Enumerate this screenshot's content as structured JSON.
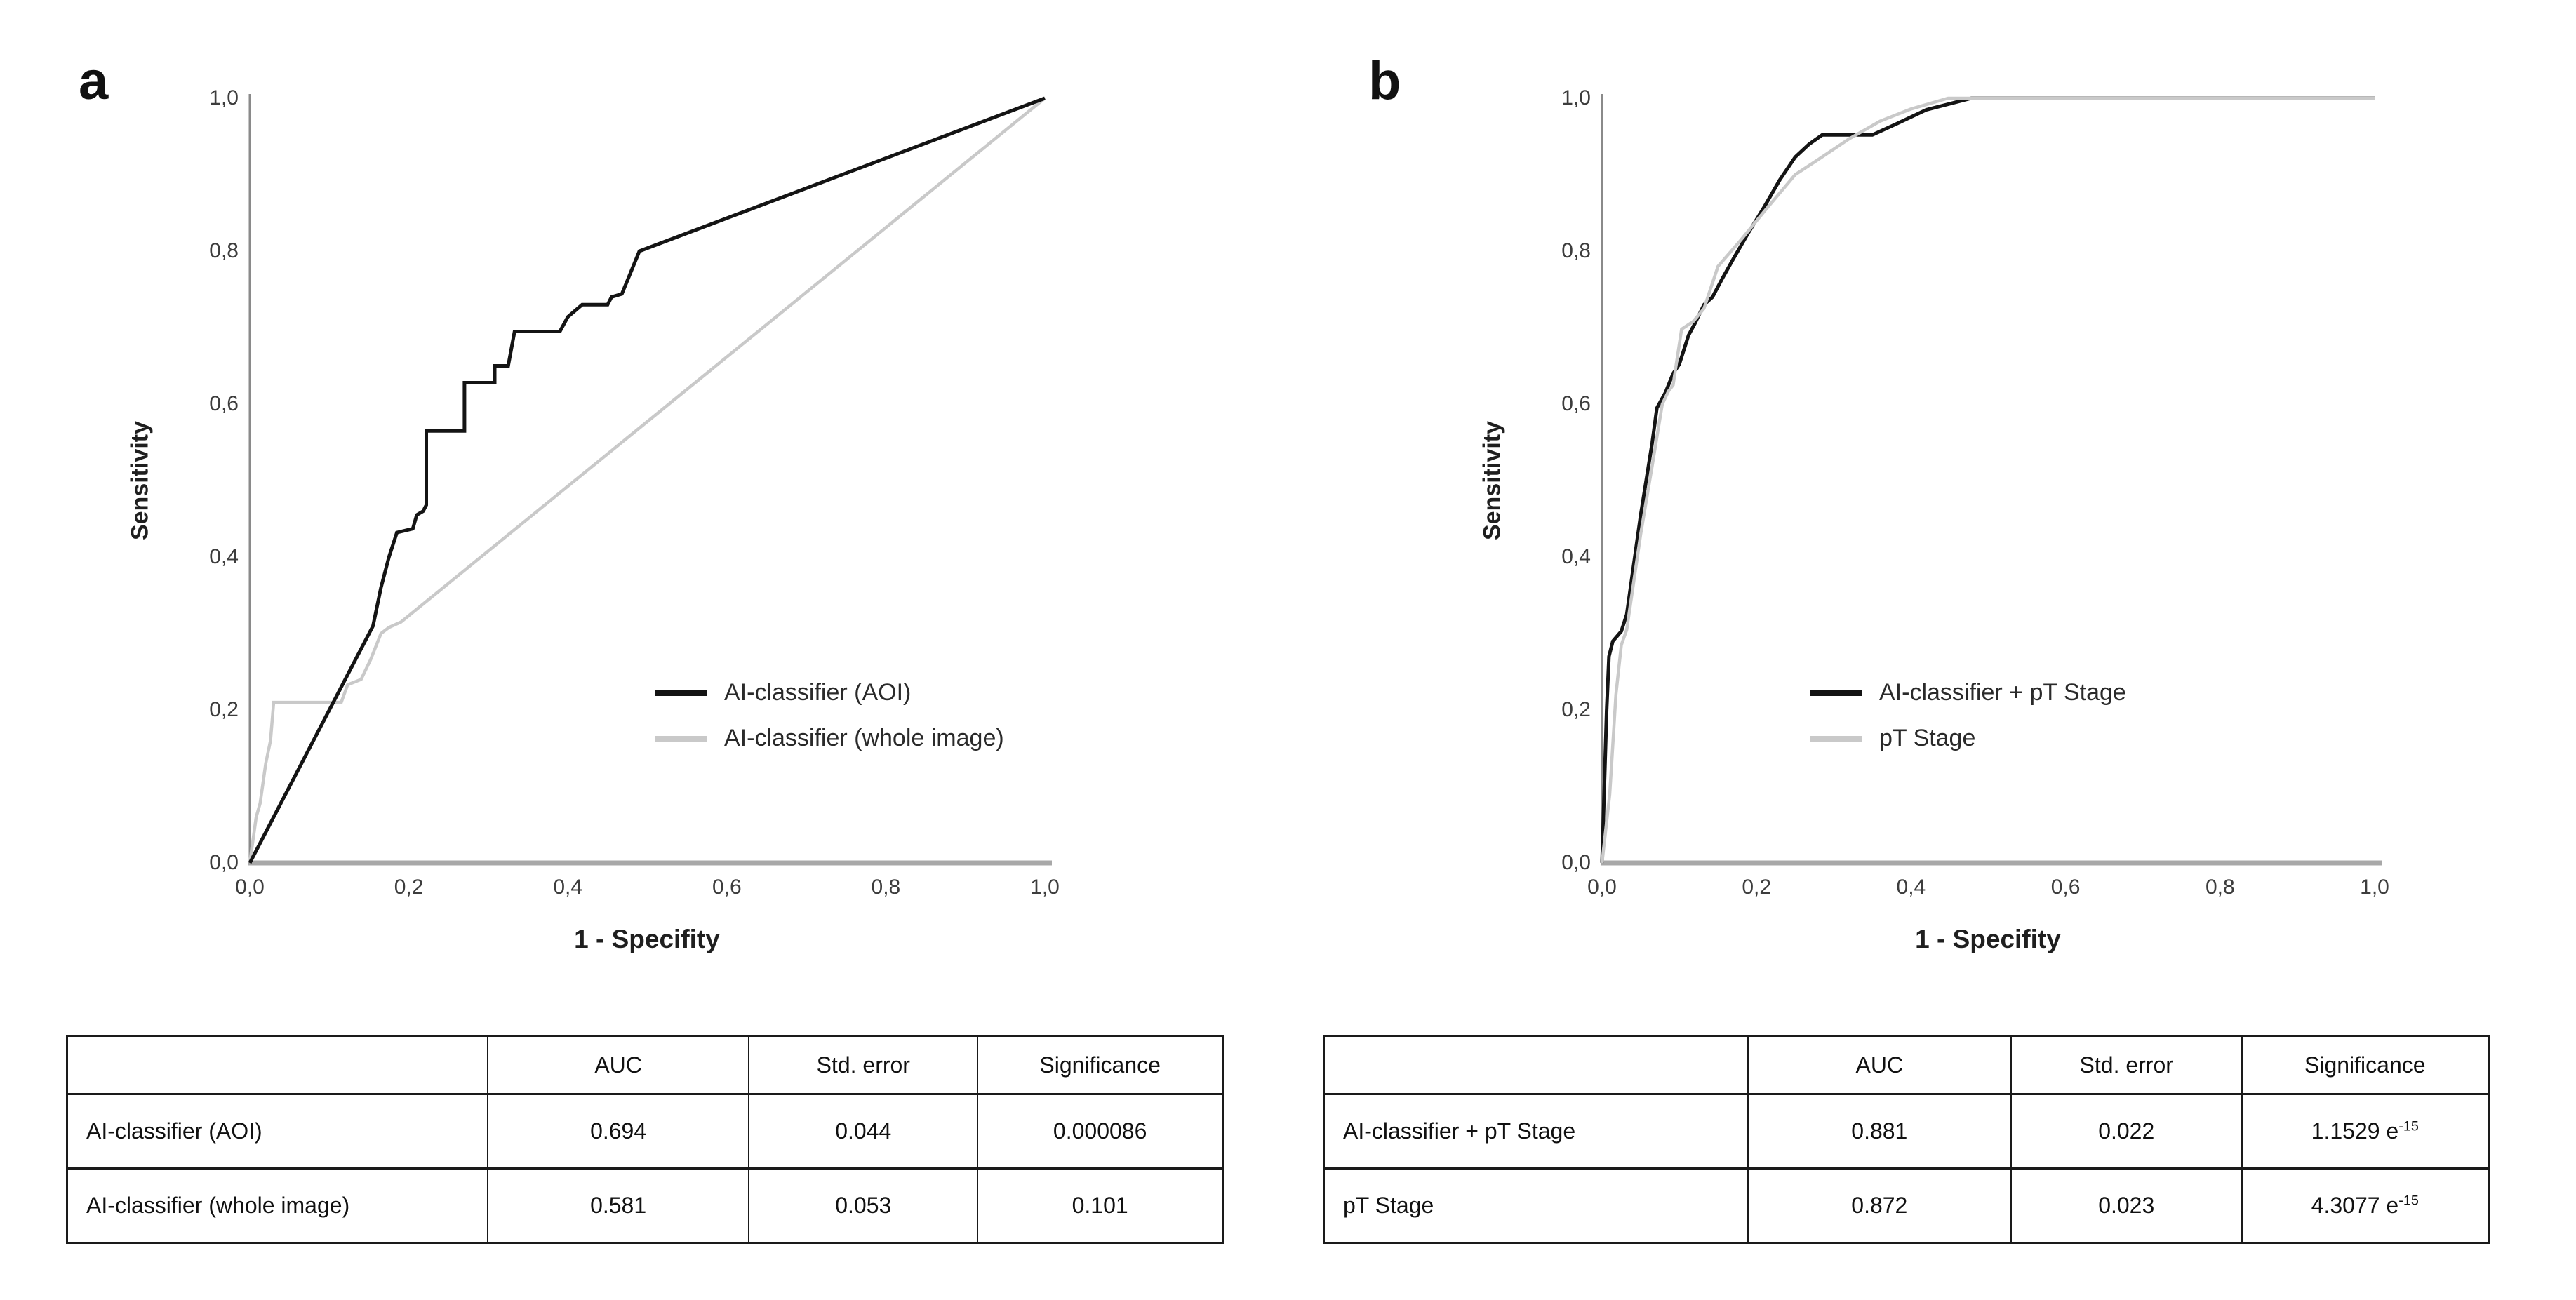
{
  "panels": [
    {
      "letter": "a",
      "y_axis_label": "Sensitivity",
      "x_axis_label": "1 - Specifity",
      "x_ticks": [
        "0,0",
        "0,2",
        "0,4",
        "0,6",
        "0,8",
        "1,0"
      ],
      "y_ticks": [
        "0,0",
        "0,2",
        "0,4",
        "0,6",
        "0,8",
        "1,0"
      ],
      "legend": [
        {
          "label": "AI-classifier (AOI)",
          "color": "#141414"
        },
        {
          "label": "AI-classifier (whole image)",
          "color": "#c9c9c9"
        }
      ],
      "table": {
        "headers": [
          "",
          "AUC",
          "Std. error",
          "Significance"
        ],
        "rows": [
          [
            "AI-classifier (AOI)",
            "0.694",
            "0.044",
            "0.000086"
          ],
          [
            "AI-classifier (whole image)",
            "0.581",
            "0.053",
            "0.101"
          ]
        ]
      }
    },
    {
      "letter": "b",
      "y_axis_label": "Sensitivity",
      "x_axis_label": "1 - Specifity",
      "x_ticks": [
        "0,0",
        "0,2",
        "0,4",
        "0,6",
        "0,8",
        "1,0"
      ],
      "y_ticks": [
        "0,0",
        "0,2",
        "0,4",
        "0,6",
        "0,8",
        "1,0"
      ],
      "legend": [
        {
          "label": "AI-classifier + pT Stage",
          "color": "#141414"
        },
        {
          "label": "pT Stage",
          "color": "#c9c9c9"
        }
      ],
      "table": {
        "headers": [
          "",
          "AUC",
          "Std. error",
          "Significance"
        ],
        "rows": [
          [
            "AI-classifier + pT Stage",
            "0.881",
            "0.022",
            {
              "text": "1.1529 e",
              "sup": "-15"
            }
          ],
          [
            "pT Stage",
            "0.872",
            "0.023",
            {
              "text": "4.3077 e",
              "sup": "-15"
            }
          ]
        ]
      }
    }
  ],
  "chart_data": [
    {
      "type": "line",
      "title": "ROC curves: AI-classifier (AOI) vs AI-classifier (whole image)",
      "xlabel": "1 - Specifity",
      "ylabel": "Sensitivity",
      "xlim": [
        0,
        1
      ],
      "ylim": [
        0,
        1
      ],
      "x_tick_values": [
        0,
        0.2,
        0.4,
        0.6,
        0.8,
        1.0
      ],
      "y_tick_values": [
        0,
        0.2,
        0.4,
        0.6,
        0.8,
        1.0
      ],
      "grid": false,
      "legend_position": "inside-right",
      "series": [
        {
          "name": "AI-classifier (whole image)",
          "auc": 0.581,
          "color": "#c9c9c9",
          "width": 4.5,
          "points": [
            [
              0,
              0
            ],
            [
              0.008,
              0.06
            ],
            [
              0.013,
              0.078
            ],
            [
              0.02,
              0.13
            ],
            [
              0.026,
              0.16
            ],
            [
              0.03,
              0.21
            ],
            [
              0.115,
              0.21
            ],
            [
              0.123,
              0.233
            ],
            [
              0.14,
              0.24
            ],
            [
              0.152,
              0.266
            ],
            [
              0.165,
              0.3
            ],
            [
              0.175,
              0.308
            ],
            [
              0.19,
              0.315
            ],
            [
              1,
              1
            ]
          ]
        },
        {
          "name": "AI-classifier (AOI)",
          "auc": 0.694,
          "color": "#141414",
          "width": 5,
          "points": [
            [
              0,
              0
            ],
            [
              0.155,
              0.31
            ],
            [
              0.165,
              0.36
            ],
            [
              0.175,
              0.4
            ],
            [
              0.185,
              0.432
            ],
            [
              0.205,
              0.437
            ],
            [
              0.21,
              0.455
            ],
            [
              0.218,
              0.46
            ],
            [
              0.222,
              0.468
            ],
            [
              0.222,
              0.565
            ],
            [
              0.27,
              0.565
            ],
            [
              0.27,
              0.628
            ],
            [
              0.308,
              0.628
            ],
            [
              0.308,
              0.65
            ],
            [
              0.325,
              0.65
            ],
            [
              0.333,
              0.695
            ],
            [
              0.39,
              0.695
            ],
            [
              0.4,
              0.714
            ],
            [
              0.418,
              0.73
            ],
            [
              0.45,
              0.73
            ],
            [
              0.455,
              0.74
            ],
            [
              0.468,
              0.744
            ],
            [
              0.49,
              0.8
            ],
            [
              1,
              1
            ]
          ]
        }
      ]
    },
    {
      "type": "line",
      "title": "ROC curves: AI-classifier + pT Stage vs pT Stage",
      "xlabel": "1 - Specifity",
      "ylabel": "Sensitivity",
      "xlim": [
        0,
        1
      ],
      "ylim": [
        0,
        1
      ],
      "x_tick_values": [
        0,
        0.2,
        0.4,
        0.6,
        0.8,
        1.0
      ],
      "y_tick_values": [
        0,
        0.2,
        0.4,
        0.6,
        0.8,
        1.0
      ],
      "grid": false,
      "legend_position": "inside-right",
      "series": [
        {
          "name": "AI-classifier + pT Stage",
          "auc": 0.881,
          "color": "#141414",
          "width": 5,
          "points": [
            [
              0,
              0
            ],
            [
              0.006,
              0.2
            ],
            [
              0.009,
              0.27
            ],
            [
              0.014,
              0.29
            ],
            [
              0.025,
              0.303
            ],
            [
              0.032,
              0.325
            ],
            [
              0.05,
              0.455
            ],
            [
              0.065,
              0.55
            ],
            [
              0.071,
              0.595
            ],
            [
              0.082,
              0.615
            ],
            [
              0.092,
              0.64
            ],
            [
              0.1,
              0.652
            ],
            [
              0.112,
              0.69
            ],
            [
              0.12,
              0.705
            ],
            [
              0.132,
              0.73
            ],
            [
              0.143,
              0.74
            ],
            [
              0.155,
              0.763
            ],
            [
              0.17,
              0.79
            ],
            [
              0.19,
              0.825
            ],
            [
              0.21,
              0.858
            ],
            [
              0.23,
              0.893
            ],
            [
              0.25,
              0.923
            ],
            [
              0.268,
              0.94
            ],
            [
              0.285,
              0.952
            ],
            [
              0.35,
              0.952
            ],
            [
              0.38,
              0.966
            ],
            [
              0.42,
              0.985
            ],
            [
              0.478,
              1.0
            ],
            [
              1,
              1
            ]
          ]
        },
        {
          "name": "pT Stage",
          "auc": 0.872,
          "color": "#c9c9c9",
          "width": 4.5,
          "points": [
            [
              0,
              0
            ],
            [
              0.01,
              0.09
            ],
            [
              0.018,
              0.22
            ],
            [
              0.025,
              0.285
            ],
            [
              0.032,
              0.305
            ],
            [
              0.05,
              0.43
            ],
            [
              0.065,
              0.52
            ],
            [
              0.078,
              0.6
            ],
            [
              0.086,
              0.617
            ],
            [
              0.092,
              0.625
            ],
            [
              0.103,
              0.698
            ],
            [
              0.118,
              0.708
            ],
            [
              0.132,
              0.725
            ],
            [
              0.15,
              0.78
            ],
            [
              0.18,
              0.815
            ],
            [
              0.21,
              0.852
            ],
            [
              0.25,
              0.9
            ],
            [
              0.28,
              0.92
            ],
            [
              0.32,
              0.947
            ],
            [
              0.36,
              0.97
            ],
            [
              0.4,
              0.986
            ],
            [
              0.448,
              1.0
            ],
            [
              1,
              1
            ]
          ]
        }
      ]
    }
  ]
}
